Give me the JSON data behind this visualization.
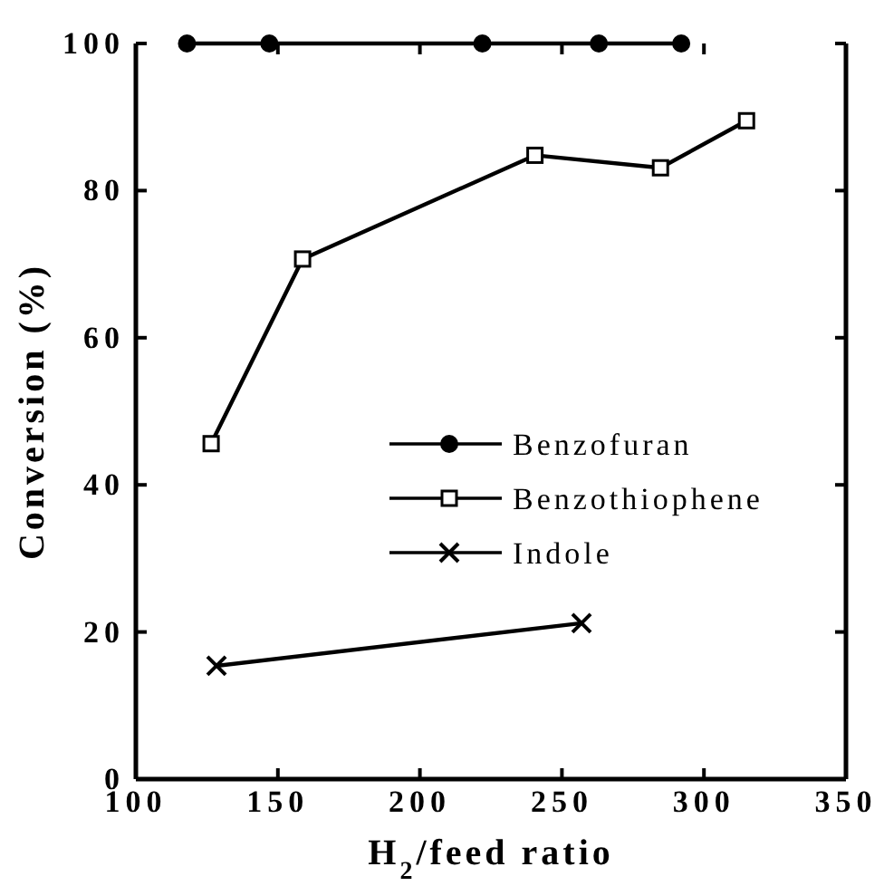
{
  "chart_data": {
    "type": "line",
    "xlabel": "H$_{2}$/feed  ratio",
    "ylabel": "Conversion  (%)",
    "xlim": [
      100,
      350
    ],
    "xticks": [
      100,
      150,
      200,
      250,
      300,
      350
    ],
    "ylim": [
      0,
      100
    ],
    "yticks": [
      0,
      20,
      40,
      60,
      80,
      100
    ],
    "grid": false,
    "legend": "right",
    "line_style": "solid",
    "series": [
      {
        "name": "Benzofuran",
        "color": "#000000",
        "marker": "circle",
        "x": [
          118,
          147,
          222,
          263,
          292
        ],
        "values": [
          100,
          100,
          100,
          100,
          100
        ]
      },
      {
        "name": "Benzothiophene",
        "color": "#000000",
        "marker": "square",
        "x": [
          126.5,
          158.7,
          240.5,
          284.7,
          315
        ],
        "values": [
          45.6,
          70.7,
          84.8,
          83.1,
          89.5
        ]
      },
      {
        "name": "Indole",
        "color": "#000000",
        "marker": "cross",
        "x": [
          128.4,
          256.9
        ],
        "values": [
          15.4,
          21.2
        ]
      }
    ]
  }
}
